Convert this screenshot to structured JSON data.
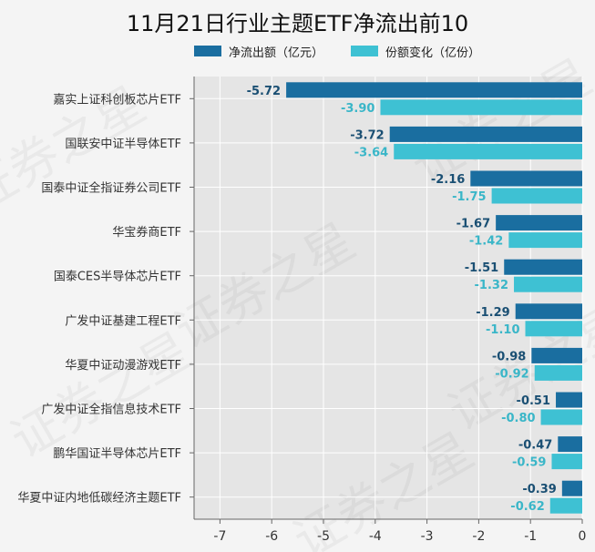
{
  "chart_data": {
    "type": "bar",
    "orientation": "horizontal",
    "title": "11月21日行业主题ETF净流出前10",
    "categories": [
      "嘉实上证科创板芯片ETF",
      "国联安中证半导体ETF",
      "国泰中证全指证券公司ETF",
      "华宝券商ETF",
      "国泰CES半导体芯片ETF",
      "广发中证基建工程ETF",
      "华夏中证动漫游戏ETF",
      "广发中证全指信息技术ETF",
      "鹏华国证半导体芯片ETF",
      "华夏中证内地低碳经济主题ETF"
    ],
    "series": [
      {
        "name": "净流出额（亿元）",
        "color": "#1a6ea0",
        "values": [
          -5.72,
          -3.72,
          -2.16,
          -1.67,
          -1.51,
          -1.29,
          -0.98,
          -0.51,
          -0.47,
          -0.39
        ],
        "labels": [
          "-5.72",
          "-3.72",
          "-2.16",
          "-1.67",
          "-1.51",
          "-1.29",
          "-0.98",
          "-0.51",
          "-0.47",
          "-0.39"
        ]
      },
      {
        "name": "份额变化（亿份）",
        "color": "#3ec1d3",
        "values": [
          -3.9,
          -3.64,
          -1.75,
          -1.42,
          -1.32,
          -1.1,
          -0.92,
          -0.8,
          -0.59,
          -0.62
        ],
        "labels": [
          "-3.90",
          "-3.64",
          "-1.75",
          "-1.42",
          "-1.32",
          "-1.10",
          "-0.92",
          "-0.80",
          "-0.59",
          "-0.62"
        ]
      }
    ],
    "xlim": [
      -7.5,
      0
    ],
    "xticks": [
      -7,
      -6,
      -5,
      -4,
      -3,
      -2,
      -1,
      0
    ],
    "xtick_labels": [
      "-7",
      "-6",
      "-5",
      "-4",
      "-3",
      "-2",
      "-1",
      "0"
    ],
    "grid": true,
    "legend_position": "top",
    "background_color": "#e5e5e5",
    "watermark": "证券之星"
  }
}
